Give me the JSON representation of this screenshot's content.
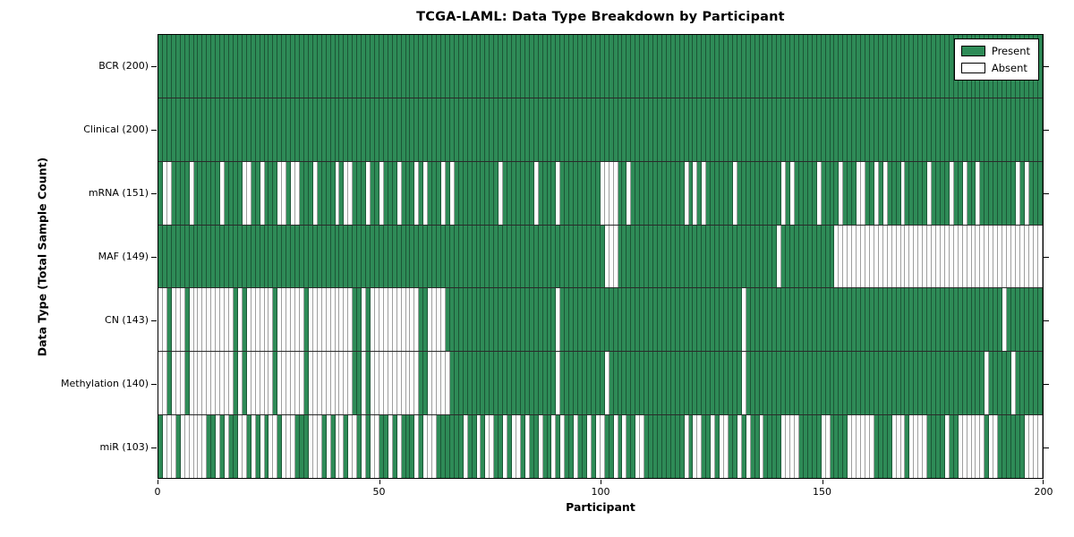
{
  "chart_data": {
    "type": "heatmap",
    "title": "TCGA-LAML: Data Type Breakdown by Participant",
    "xlabel": "Participant",
    "ylabel": "Data Type (Total Sample Count)",
    "x_ticks": [
      0,
      50,
      100,
      150,
      200
    ],
    "x_range": [
      0,
      200
    ],
    "n_participants": 200,
    "grid": false,
    "legend_position": "upper right",
    "legend": [
      {
        "label": "Present",
        "color": "#2e8b57"
      },
      {
        "label": "Absent",
        "color": "#ffffff"
      }
    ],
    "colors": {
      "present": "#2e8b57",
      "absent": "#ffffff",
      "cell_edge": "rgba(0,0,0,0.38)"
    },
    "series": [
      {
        "name": "BCR",
        "label": "BCR (200)",
        "present_count": 200,
        "pattern": "11111111111111111111111111111111111111111111111111111111111111111111111111111111111111111111111111111111111111111111111111111111111111111111111111111111111111111111111111111111111111111111111111111111"
      },
      {
        "name": "Clinical",
        "label": "Clinical (200)",
        "present_count": 200,
        "pattern": "11111111111111111111111111111111111111111111111111111111111111111111111111111111111111111111111111111111111111111111111111111111111111111111111111111111111111111111111111111111111111111111111111111111"
      },
      {
        "name": "mRNA",
        "label": "mRNA (151)",
        "present_count": 151,
        "pattern": "10011110111111011110011011100100111011110100111011011101110101110101111111111011111110111101111111110000110111111111111010101111110111111111101011111011110111001101011101111101111011011011111111010111"
      },
      {
        "name": "MAF",
        "label": "MAF (149)",
        "present_count": 149,
        "pattern": "11111111111111111111111111111111111111111111111111111111111111111111111111111111111111111111111111111000111111111111111111111111111111111111011111111111100000000000000000000000000000000000000000000000"
      },
      {
        "name": "CN",
        "label": "CN (143)",
        "present_count": 143,
        "pattern": "00100010000000000101000000100000010000000000110100000000000110000111111111111111111111111101111111111111111111111111111111111111111101111111111111111111111111111111111111111111111111111111111011111111"
      },
      {
        "name": "Methylation",
        "label": "Methylation (140)",
        "present_count": 140,
        "pattern": "00100010000000000101000000100000010000000000110100000000000110000011111111111111111111111101111111111011111111111111111111111111111101111111111111111111111111111111111111111111111111111110111110111111"
      },
      {
        "name": "miR",
        "label": "miR (103)",
        "present_count": 103,
        "pattern": "10001000000110101100101010010001110001010010010100110101110100011111101101001101001011011010110110100110101100111111111010011010011010110111100001111100111100000011110001000011110110000001001111110000"
      }
    ]
  }
}
